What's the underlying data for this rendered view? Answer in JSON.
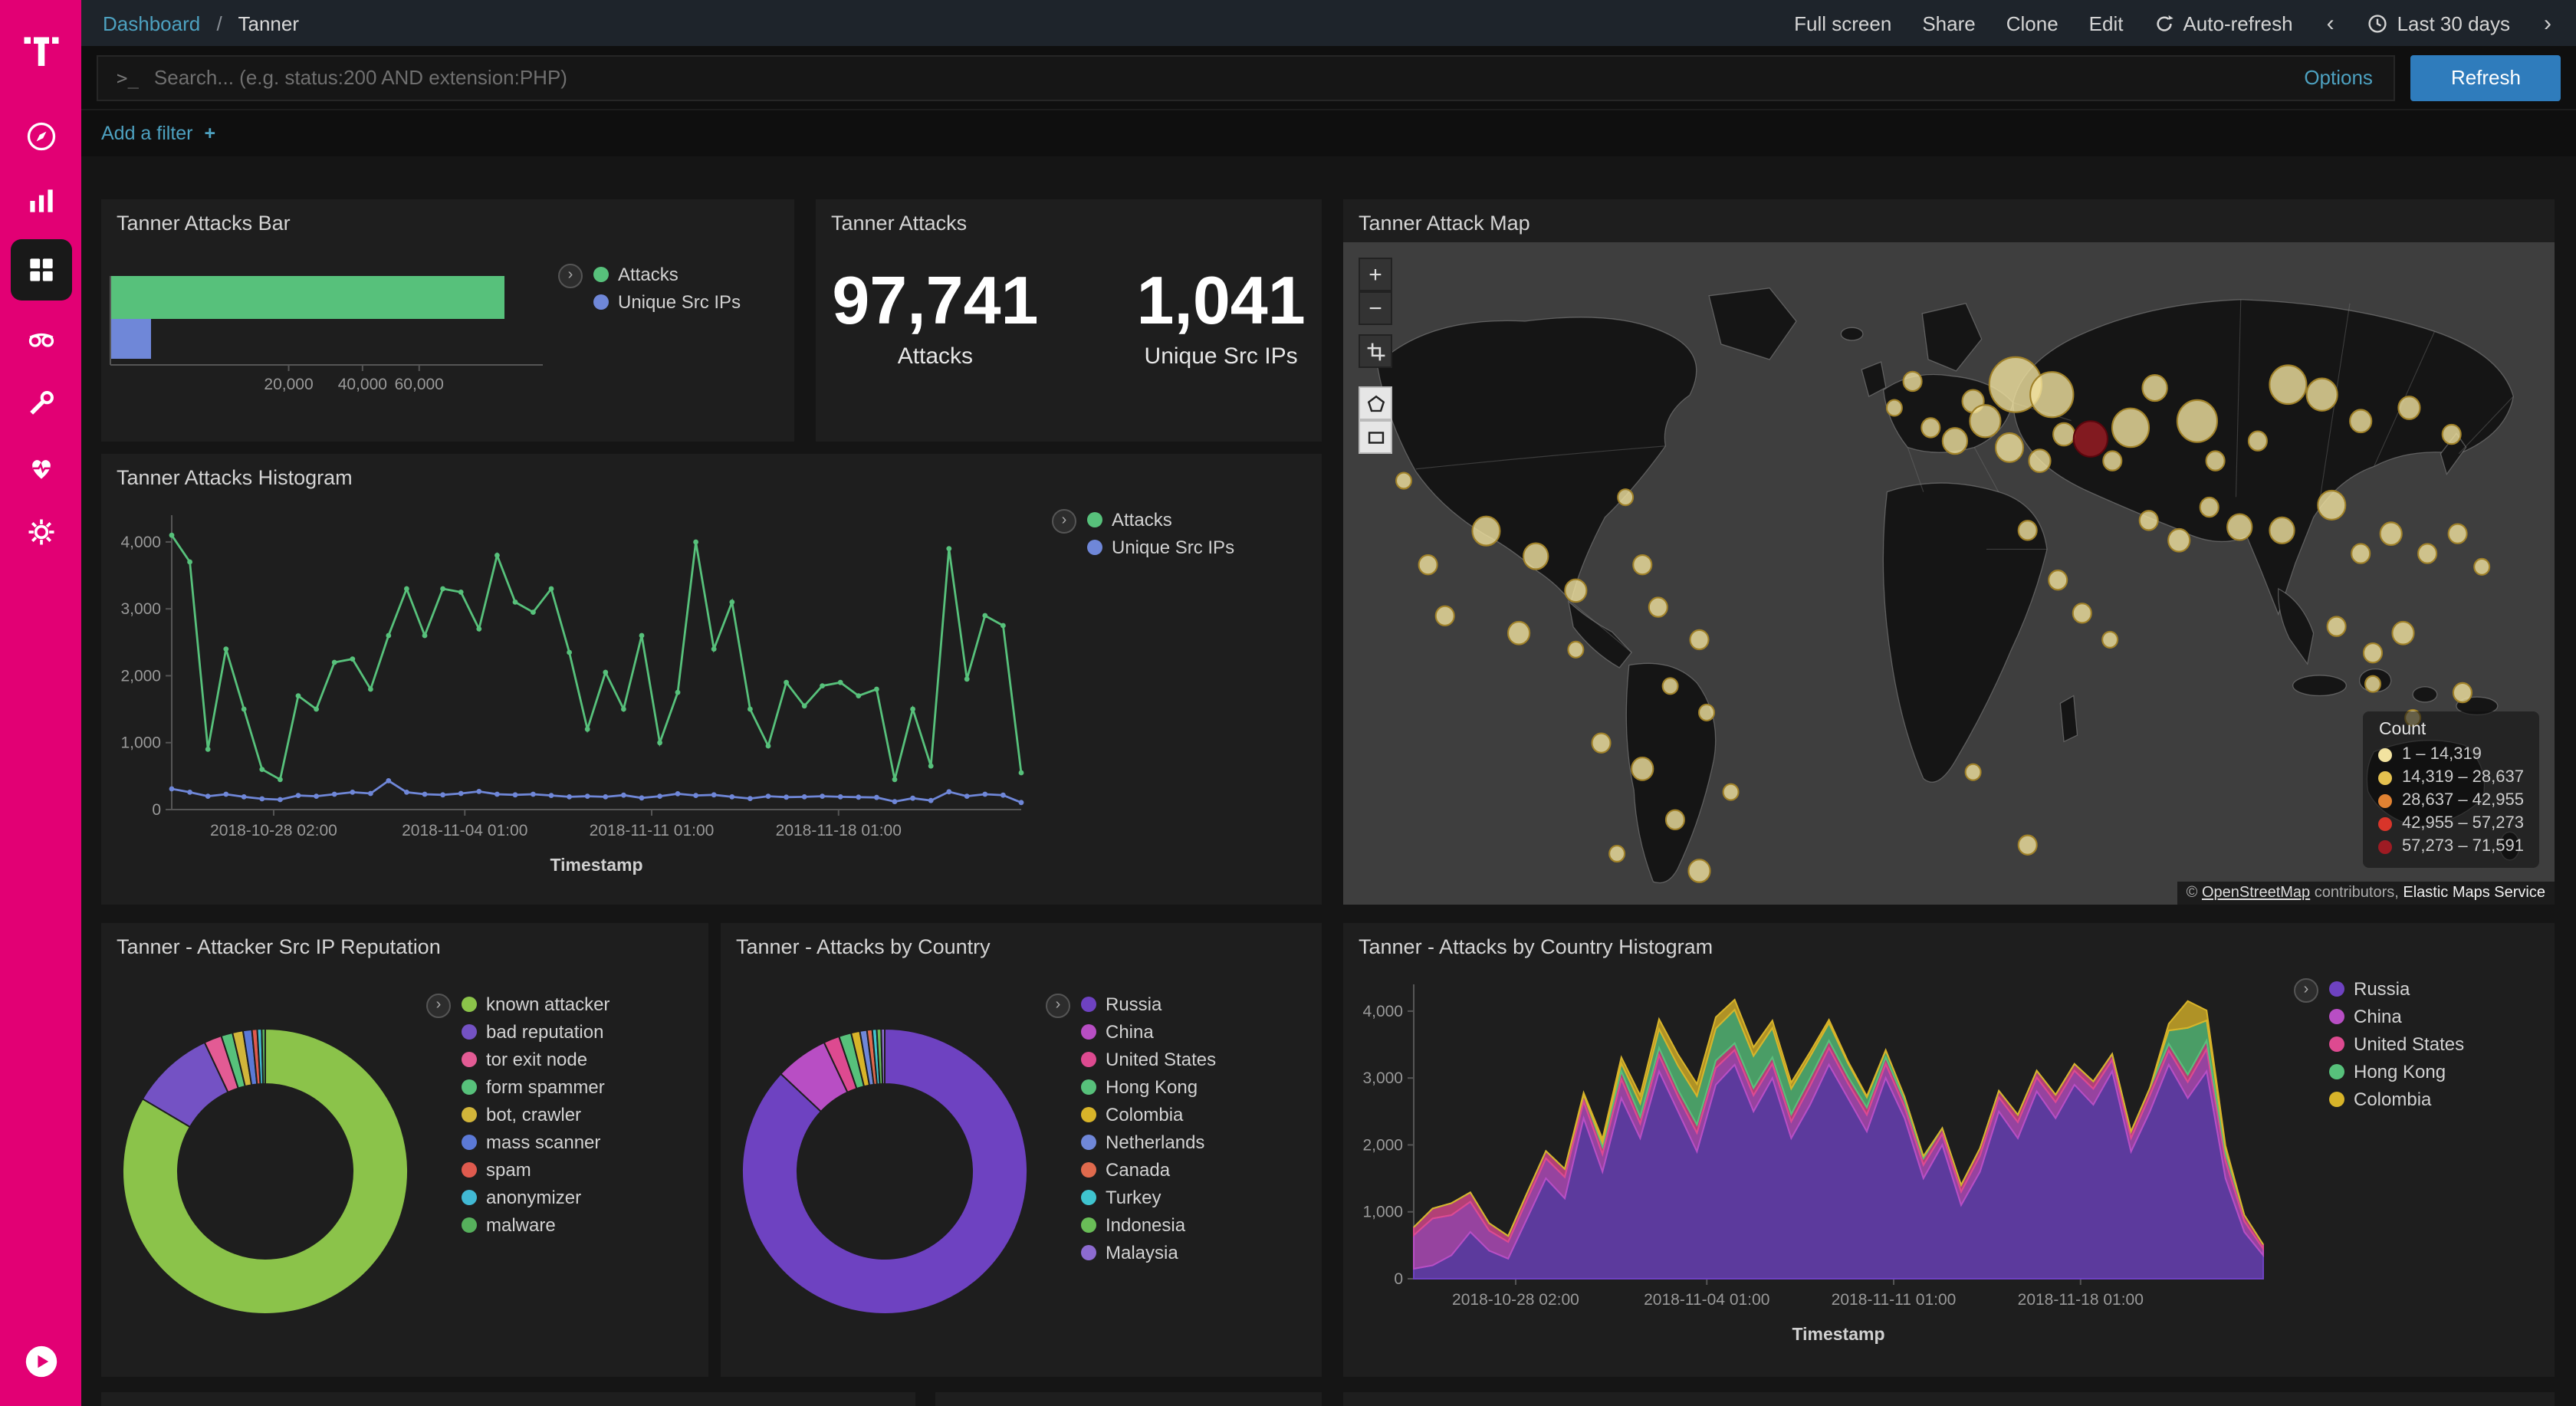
{
  "topbar": {
    "breadcrumb_root": "Dashboard",
    "breadcrumb_separator": "/",
    "breadcrumb_current": "Tanner",
    "actions": [
      "Full screen",
      "Share",
      "Clone",
      "Edit"
    ],
    "auto_refresh_label": "Auto-refresh",
    "time_range_label": "Last 30 days",
    "prev_chevron": "‹",
    "next_chevron": "›"
  },
  "search_bar": {
    "prompt": ">_",
    "placeholder": "Search... (e.g. status:200 AND extension:PHP)",
    "options_label": "Options",
    "refresh_label": "Refresh"
  },
  "filter_bar": {
    "add_filter_label": "Add a filter",
    "plus": "+"
  },
  "ui": {
    "legend_toggle": "›",
    "zoom_in": "+",
    "zoom_out": "−"
  },
  "panels": {
    "attacks_bar": {
      "title": "Tanner Attacks Bar",
      "chart_data": {
        "type": "bar",
        "orientation": "horizontal",
        "scale": "square-root",
        "categories": [
          "Attacks",
          "Unique Src IPs"
        ],
        "values": [
          97741,
          1041
        ],
        "colors": [
          "#57c17b",
          "#6f87d8"
        ],
        "x_ticks": [
          20000,
          40000,
          60000
        ],
        "x_tick_labels": [
          "20,000",
          "40,000",
          "60,000"
        ]
      },
      "legend": [
        {
          "label": "Attacks",
          "color": "#57c17b"
        },
        {
          "label": "Unique Src IPs",
          "color": "#6f87d8"
        }
      ]
    },
    "attacks_metric": {
      "title": "Tanner Attacks",
      "metrics": [
        {
          "value": "97,741",
          "label": "Attacks"
        },
        {
          "value": "1,041",
          "label": "Unique Src IPs"
        }
      ]
    },
    "attack_map": {
      "title": "Tanner Attack Map",
      "legend": {
        "title": "Count",
        "ranges": [
          {
            "label": "1 – 14,319",
            "color": "#f2e3a0"
          },
          {
            "label": "14,319 – 28,637",
            "color": "#e5c14f"
          },
          {
            "label": "28,637 – 42,955",
            "color": "#e08232"
          },
          {
            "label": "42,955 – 57,273",
            "color": "#d8352a"
          },
          {
            "label": "57,273 – 71,591",
            "color": "#9e1b23"
          }
        ]
      },
      "attribution": {
        "prefix": "© ",
        "osm": "OpenStreetMap",
        "middle": " contributors, ",
        "elastic": "Elastic Maps Service"
      },
      "points": [
        [
          45.5,
          25,
          5,
          0
        ],
        [
          47,
          21,
          6,
          0
        ],
        [
          48.5,
          28,
          6,
          0
        ],
        [
          50.5,
          30,
          8,
          0
        ],
        [
          52,
          24,
          7,
          0
        ],
        [
          53,
          27,
          10,
          0
        ],
        [
          55.5,
          21.5,
          17,
          0
        ],
        [
          58.5,
          23,
          14,
          0
        ],
        [
          55,
          31,
          9,
          0
        ],
        [
          57.5,
          33,
          7,
          0
        ],
        [
          59.5,
          29,
          7,
          0
        ],
        [
          61.7,
          29.7,
          11,
          4
        ],
        [
          63.5,
          33,
          6,
          0
        ],
        [
          65,
          28,
          12,
          0
        ],
        [
          67,
          22,
          8,
          0
        ],
        [
          70.5,
          27,
          13,
          0
        ],
        [
          72,
          33,
          6,
          0
        ],
        [
          75.5,
          30,
          6,
          0
        ],
        [
          78,
          21.5,
          12,
          0
        ],
        [
          80.8,
          23,
          10,
          0
        ],
        [
          84,
          27,
          7,
          0
        ],
        [
          88,
          25,
          7,
          0
        ],
        [
          91.5,
          29,
          6,
          0
        ],
        [
          66.5,
          42,
          6,
          0
        ],
        [
          69,
          45,
          7,
          0
        ],
        [
          71.5,
          40,
          6,
          0
        ],
        [
          74,
          43,
          8,
          0
        ],
        [
          77.5,
          43.5,
          8,
          0
        ],
        [
          81.6,
          39.7,
          9,
          0
        ],
        [
          84,
          47,
          6,
          0
        ],
        [
          86.5,
          44,
          7,
          0
        ],
        [
          89.5,
          47,
          6,
          0
        ],
        [
          92,
          44,
          6,
          0
        ],
        [
          94,
          49,
          5,
          0
        ],
        [
          56.5,
          43.5,
          6,
          0
        ],
        [
          59,
          51,
          6,
          0
        ],
        [
          61,
          56,
          6,
          0
        ],
        [
          63.3,
          60,
          5,
          0
        ],
        [
          56.5,
          91,
          6,
          0
        ],
        [
          52,
          80,
          5,
          0
        ],
        [
          82,
          58,
          6,
          0
        ],
        [
          85,
          62,
          6,
          0
        ],
        [
          87.5,
          59,
          7,
          0
        ],
        [
          85,
          66.7,
          5,
          0
        ],
        [
          88.3,
          71.8,
          5,
          0
        ],
        [
          92.4,
          68,
          6,
          0
        ],
        [
          5,
          36,
          5,
          0
        ],
        [
          8.4,
          56.4,
          6,
          0
        ],
        [
          7,
          48.7,
          6,
          0
        ],
        [
          11.8,
          43.6,
          9,
          0
        ],
        [
          14.5,
          59,
          7,
          0
        ],
        [
          15.9,
          47.4,
          8,
          0
        ],
        [
          19.2,
          52.6,
          7,
          0
        ],
        [
          19.2,
          61.5,
          5,
          0
        ],
        [
          23.3,
          38.5,
          5,
          0
        ],
        [
          24.7,
          48.7,
          6,
          0
        ],
        [
          26,
          55.1,
          6,
          0
        ],
        [
          29.4,
          60,
          6,
          0
        ],
        [
          27,
          67,
          5,
          0
        ],
        [
          30,
          71,
          5,
          0
        ],
        [
          21.3,
          75.6,
          6,
          0
        ],
        [
          24.7,
          79.5,
          7,
          0
        ],
        [
          27.4,
          87.2,
          6,
          0
        ],
        [
          29.4,
          94.9,
          7,
          0
        ],
        [
          22.6,
          92.3,
          5,
          0
        ],
        [
          32,
          83,
          5,
          0
        ]
      ]
    },
    "attacks_histogram": {
      "title": "Tanner Attacks Histogram",
      "chart_data": {
        "type": "line",
        "xlabel": "Timestamp",
        "ylim": [
          0,
          4400
        ],
        "y_ticks": [
          0,
          1000,
          2000,
          3000,
          4000
        ],
        "y_tick_labels": [
          "0",
          "1,000",
          "2,000",
          "3,000",
          "4,000"
        ],
        "x_tick_labels": [
          "2018-10-28 02:00",
          "2018-11-04 01:00",
          "2018-11-11 01:00",
          "2018-11-18 01:00"
        ],
        "x_tick_positions": [
          0.12,
          0.345,
          0.565,
          0.785
        ],
        "series": [
          {
            "name": "Attacks",
            "color": "#57c17b",
            "values": [
              4100,
              3700,
              900,
              2400,
              1500,
              600,
              450,
              1700,
              1500,
              2200,
              2250,
              1800,
              2600,
              3300,
              2600,
              3300,
              3250,
              2700,
              3800,
              3100,
              2950,
              3300,
              2350,
              1200,
              2050,
              1500,
              2600,
              1000,
              1750,
              4000,
              2400,
              3100,
              1500,
              950,
              1900,
              1550,
              1850,
              1900,
              1700,
              1800,
              450,
              1500,
              650,
              3900,
              1950,
              2900,
              2750,
              550
            ]
          },
          {
            "name": "Unique Src IPs",
            "color": "#6f87d8",
            "values": [
              310,
              260,
              200,
              230,
              190,
              160,
              150,
              210,
              200,
              230,
              260,
              240,
              430,
              260,
              230,
              220,
              240,
              270,
              230,
              220,
              230,
              210,
              190,
              200,
              190,
              215,
              175,
              200,
              235,
              210,
              220,
              190,
              165,
              200,
              185,
              190,
              200,
              190,
              185,
              180,
              120,
              170,
              135,
              265,
              200,
              230,
              215,
              105
            ]
          }
        ]
      },
      "legend": [
        {
          "label": "Attacks",
          "color": "#57c17b"
        },
        {
          "label": "Unique Src IPs",
          "color": "#6f87d8"
        }
      ]
    },
    "reputation_donut": {
      "title": "Tanner - Attacker Src IP Reputation",
      "chart_data": {
        "type": "pie",
        "donut": true,
        "labels": [
          "known attacker",
          "bad reputation",
          "tor exit node",
          "form spammer",
          "bot, crawler",
          "mass scanner",
          "spam",
          "anonymizer",
          "malware"
        ],
        "values": [
          83.5,
          9.5,
          2,
          1.3,
          1.2,
          1,
          0.6,
          0.5,
          0.4
        ],
        "colors": [
          "#8bc34a",
          "#7452c4",
          "#e35b94",
          "#57c17b",
          "#d2b53a",
          "#5b79d6",
          "#df5a4e",
          "#41b9d4",
          "#56b05c"
        ]
      },
      "legend": [
        {
          "label": "known attacker",
          "color": "#8bc34a"
        },
        {
          "label": "bad reputation",
          "color": "#7452c4"
        },
        {
          "label": "tor exit node",
          "color": "#e35b94"
        },
        {
          "label": "form spammer",
          "color": "#57c17b"
        },
        {
          "label": "bot, crawler",
          "color": "#d2b53a"
        },
        {
          "label": "mass scanner",
          "color": "#5b79d6"
        },
        {
          "label": "spam",
          "color": "#df5a4e"
        },
        {
          "label": "anonymizer",
          "color": "#41b9d4"
        },
        {
          "label": "malware",
          "color": "#56b05c"
        }
      ]
    },
    "country_donut": {
      "title": "Tanner - Attacks by Country",
      "chart_data": {
        "type": "pie",
        "donut": true,
        "labels": [
          "Russia",
          "China",
          "United States",
          "Hong Kong",
          "Colombia",
          "Netherlands",
          "Canada",
          "Turkey",
          "Indonesia",
          "Malaysia"
        ],
        "values": [
          87,
          6,
          1.8,
          1.4,
          1,
          0.8,
          0.6,
          0.5,
          0.5,
          0.4
        ],
        "colors": [
          "#6e42c1",
          "#b84ec4",
          "#dd4a90",
          "#57c17b",
          "#d8b429",
          "#6f87d8",
          "#e06a4d",
          "#3fc4cf",
          "#69bd57",
          "#8d6bd0"
        ]
      },
      "legend": [
        {
          "label": "Russia",
          "color": "#6e42c1"
        },
        {
          "label": "China",
          "color": "#b84ec4"
        },
        {
          "label": "United States",
          "color": "#dd4a90"
        },
        {
          "label": "Hong Kong",
          "color": "#57c17b"
        },
        {
          "label": "Colombia",
          "color": "#d8b429"
        },
        {
          "label": "Netherlands",
          "color": "#6f87d8"
        },
        {
          "label": "Canada",
          "color": "#e06a4d"
        },
        {
          "label": "Turkey",
          "color": "#3fc4cf"
        },
        {
          "label": "Indonesia",
          "color": "#69bd57"
        },
        {
          "label": "Malaysia",
          "color": "#8d6bd0"
        }
      ]
    },
    "country_histogram": {
      "title": "Tanner - Attacks by Country Histogram",
      "chart_data": {
        "type": "area",
        "stacked": true,
        "xlabel": "Timestamp",
        "ylim": [
          0,
          4400
        ],
        "y_ticks": [
          0,
          1000,
          2000,
          3000,
          4000
        ],
        "y_tick_labels": [
          "0",
          "1,000",
          "2,000",
          "3,000",
          "4,000"
        ],
        "x_tick_labels": [
          "2018-10-28 02:00",
          "2018-11-04 01:00",
          "2018-11-11 01:00",
          "2018-11-18 01:00"
        ],
        "x_tick_positions": [
          0.12,
          0.345,
          0.565,
          0.785
        ],
        "series": [
          {
            "name": "Russia",
            "color": "#6e42c1",
            "values": [
              150,
              200,
              350,
              700,
              420,
              300,
              900,
              1500,
              1200,
              2400,
              1600,
              2700,
              2100,
              3100,
              2500,
              1900,
              2900,
              3200,
              2500,
              3000,
              2100,
              2600,
              3200,
              2700,
              2200,
              3000,
              2400,
              1500,
              2000,
              1100,
              1600,
              2500,
              2100,
              2800,
              2400,
              2900,
              2600,
              3100,
              1900,
              2500,
              3200,
              2700,
              3100,
              1500,
              700,
              350
            ]
          },
          {
            "name": "China",
            "color": "#b84ec4",
            "values": [
              500,
              700,
              600,
              450,
              300,
              250,
              280,
              300,
              320,
              250,
              260,
              280,
              220,
              240,
              220,
              280,
              250,
              220,
              240,
              210,
              250,
              280,
              250,
              220,
              250,
              210,
              170,
              200,
              160,
              200,
              240,
              210,
              240,
              210,
              240,
              210,
              240,
              170,
              200,
              240,
              210,
              240,
              330,
              260,
              160,
              100
            ]
          },
          {
            "name": "United States",
            "color": "#dd4a90",
            "values": [
              120,
              150,
              180,
              140,
              110,
              90,
              100,
              110,
              120,
              100,
              110,
              120,
              100,
              110,
              100,
              120,
              110,
              100,
              110,
              100,
              110,
              120,
              110,
              100,
              110,
              100,
              90,
              100,
              90,
              100,
              110,
              100,
              110,
              100,
              110,
              100,
              110,
              90,
              100,
              110,
              100,
              110,
              130,
              110,
              90,
              60
            ]
          },
          {
            "name": "Hong Kong",
            "color": "#57c17b",
            "values": [
              0,
              0,
              0,
              0,
              0,
              0,
              0,
              0,
              0,
              0,
              60,
              120,
              200,
              280,
              360,
              430,
              480,
              500,
              480,
              440,
              380,
              320,
              260,
              200,
              150,
              100,
              60,
              30,
              0,
              0,
              0,
              0,
              0,
              0,
              0,
              0,
              0,
              0,
              0,
              0,
              200,
              700,
              300,
              80,
              0,
              0
            ]
          },
          {
            "name": "Colombia",
            "color": "#d8b429",
            "values": [
              0,
              0,
              0,
              0,
              0,
              0,
              0,
              0,
              0,
              30,
              60,
              90,
              120,
              150,
              170,
              180,
              170,
              150,
              130,
              110,
              90,
              70,
              50,
              30,
              20,
              10,
              0,
              0,
              0,
              0,
              0,
              0,
              0,
              0,
              0,
              0,
              0,
              0,
              0,
              0,
              100,
              400,
              150,
              40,
              0,
              0
            ]
          }
        ]
      },
      "legend": [
        {
          "label": "Russia",
          "color": "#6e42c1"
        },
        {
          "label": "China",
          "color": "#b84ec4"
        },
        {
          "label": "United States",
          "color": "#dd4a90"
        },
        {
          "label": "Hong Kong",
          "color": "#57c17b"
        },
        {
          "label": "Colombia",
          "color": "#d8b429"
        }
      ]
    }
  }
}
